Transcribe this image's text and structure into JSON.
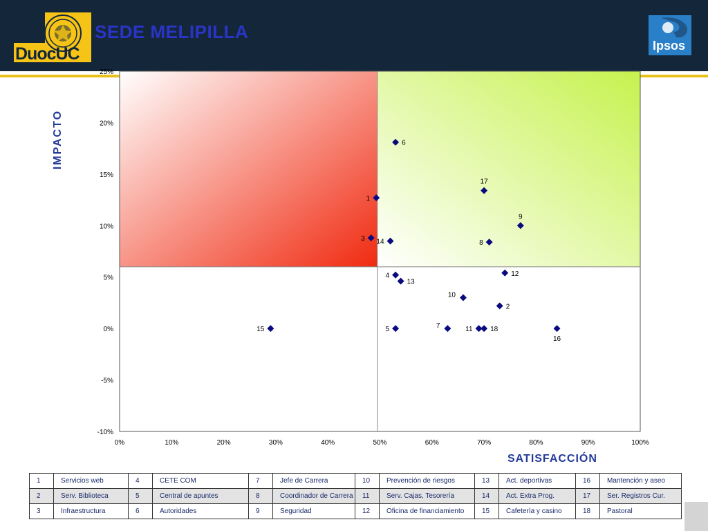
{
  "header": {
    "title": "SEDE MELIPILLA",
    "duoc_logo_text": "DuocUC",
    "ipsos_logo_text": "Ipsos"
  },
  "chart_data": {
    "type": "scatter",
    "title": "SEDE MELIPILLA",
    "xlabel": "SATISFACCIÓN",
    "ylabel": "IMPACTO",
    "xlim": [
      0,
      100
    ],
    "ylim": [
      -10,
      25
    ],
    "x_ticks": [
      "0%",
      "10%",
      "20%",
      "30%",
      "40%",
      "50%",
      "60%",
      "70%",
      "80%",
      "90%",
      "100%"
    ],
    "y_ticks": [
      "25%",
      "20%",
      "15%",
      "10%",
      "5%",
      "0%",
      "-5%",
      "-10%"
    ],
    "quadrant_dividers": {
      "x": 49.5,
      "y": 6
    },
    "quadrant_colors": {
      "high_impact_low_satisfaction": "#f02a10",
      "high_impact_high_satisfaction": "#ccf55a"
    },
    "marker_color": "#0a0a80",
    "points": [
      {
        "label": "1",
        "x": 49.3,
        "y": 12.7,
        "label_pos": "left"
      },
      {
        "label": "2",
        "x": 73.0,
        "y": 2.2,
        "label_pos": "right"
      },
      {
        "label": "3",
        "x": 48.3,
        "y": 8.8,
        "label_pos": "left"
      },
      {
        "label": "4",
        "x": 53.0,
        "y": 5.2,
        "label_pos": "left"
      },
      {
        "label": "5",
        "x": 53.0,
        "y": 0.0,
        "label_pos": "left"
      },
      {
        "label": "6",
        "x": 53.0,
        "y": 18.1,
        "label_pos": "right"
      },
      {
        "label": "7",
        "x": 63.0,
        "y": 0.0,
        "label_pos": "upleft"
      },
      {
        "label": "8",
        "x": 71.0,
        "y": 8.4,
        "label_pos": "left"
      },
      {
        "label": "9",
        "x": 77.0,
        "y": 10.0,
        "label_pos": "above"
      },
      {
        "label": "10",
        "x": 66.0,
        "y": 3.0,
        "label_pos": "upleft"
      },
      {
        "label": "11",
        "x": 69.0,
        "y": 0.0,
        "label_pos": "left"
      },
      {
        "label": "12",
        "x": 74.0,
        "y": 5.4,
        "label_pos": "right"
      },
      {
        "label": "13",
        "x": 54.0,
        "y": 4.6,
        "label_pos": "right"
      },
      {
        "label": "14",
        "x": 52.0,
        "y": 8.5,
        "label_pos": "left"
      },
      {
        "label": "15",
        "x": 29.0,
        "y": 0.0,
        "label_pos": "left"
      },
      {
        "label": "16",
        "x": 84.0,
        "y": 0.0,
        "label_pos": "below"
      },
      {
        "label": "17",
        "x": 70.0,
        "y": 13.4,
        "label_pos": "above"
      },
      {
        "label": "18",
        "x": 70.0,
        "y": 0.0,
        "label_pos": "right"
      }
    ]
  },
  "legend": [
    [
      {
        "num": "1",
        "name": "Servicios web"
      },
      {
        "num": "4",
        "name": "CETE COM"
      },
      {
        "num": "7",
        "name": "Jefe de Carrera"
      },
      {
        "num": "10",
        "name": "Prevención de riesgos"
      },
      {
        "num": "13",
        "name": "Act. deportivas"
      },
      {
        "num": "16",
        "name": "Mantención y aseo"
      }
    ],
    [
      {
        "num": "2",
        "name": "Serv. Biblioteca"
      },
      {
        "num": "5",
        "name": "Central de apuntes"
      },
      {
        "num": "8",
        "name": "Coordinador de Carrera"
      },
      {
        "num": "11",
        "name": "Serv. Cajas, Tesorería"
      },
      {
        "num": "14",
        "name": "Act. Extra Prog."
      },
      {
        "num": "17",
        "name": "Ser. Registros Cur."
      }
    ],
    [
      {
        "num": "3",
        "name": "Infraestructura"
      },
      {
        "num": "6",
        "name": "Autoridades"
      },
      {
        "num": "9",
        "name": "Seguridad"
      },
      {
        "num": "12",
        "name": "Oficina de financiamiento"
      },
      {
        "num": "15",
        "name": "Cafetería y casino"
      },
      {
        "num": "18",
        "name": "Pastoral"
      }
    ]
  ]
}
